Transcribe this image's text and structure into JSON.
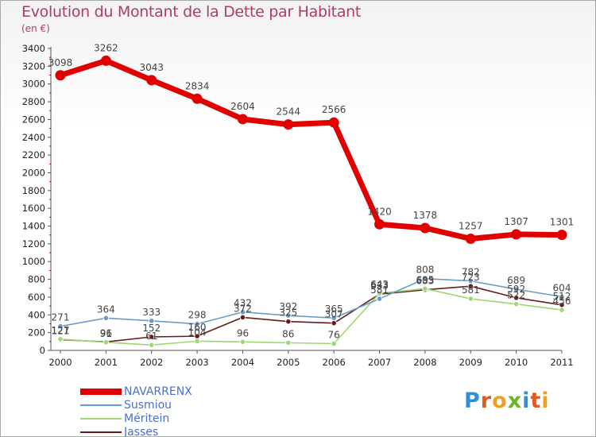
{
  "title": "Evolution du Montant de la Dette par Habitant",
  "unit": "(en €)",
  "logo": {
    "text": "Proxiti",
    "colors": [
      "#2f8fd8",
      "#e2591f",
      "#f2a01c",
      "#6ab42c",
      "#2f8fd8",
      "#e2591f",
      "#f2a01c"
    ]
  },
  "chart_data": {
    "type": "line",
    "x": [
      "2000",
      "2001",
      "2002",
      "2003",
      "2004",
      "2005",
      "2006",
      "2007",
      "2008",
      "2009",
      "2010",
      "2011"
    ],
    "ylim": [
      0,
      3400
    ],
    "yticks": [
      0,
      200,
      400,
      600,
      800,
      1000,
      1200,
      1400,
      1600,
      1800,
      2000,
      2200,
      2400,
      2600,
      2800,
      3000,
      3200,
      3400
    ],
    "grid": false,
    "legend_position": "bottom-left",
    "series": [
      {
        "name": "NAVARRENX",
        "color": "#e00000",
        "values": [
          3098,
          3262,
          3043,
          2834,
          2604,
          2544,
          2566,
          1420,
          1378,
          1257,
          1307,
          1301
        ]
      },
      {
        "name": "Susmiou",
        "color": "#6a9cc9",
        "values": [
          271,
          364,
          333,
          298,
          432,
          392,
          365,
          581,
          808,
          782,
          689,
          604
        ]
      },
      {
        "name": "Méritein",
        "color": "#9ed874",
        "values": [
          127,
          91,
          61,
          104,
          96,
          86,
          76,
          643,
          695,
          581,
          522,
          456
        ]
      },
      {
        "name": "Jasses",
        "color": "#6a1a1a",
        "values": [
          121,
          96,
          152,
          160,
          372,
          325,
          307,
          633,
          683,
          723,
          592,
          512
        ]
      }
    ]
  }
}
